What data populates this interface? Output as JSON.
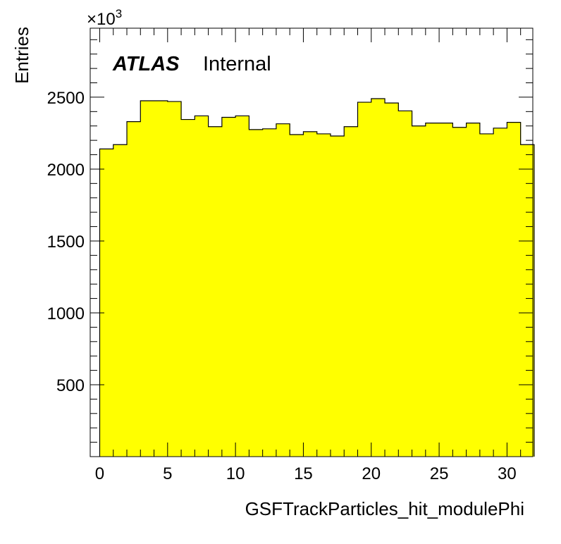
{
  "chart_data": {
    "type": "bar",
    "style": "histogram-step-filled",
    "fill_color": "#ffff00",
    "line_color": "#000000",
    "bin_edges_start": 0,
    "bin_width": 1,
    "values": [
      2140,
      2170,
      2330,
      2475,
      2475,
      2470,
      2345,
      2370,
      2295,
      2360,
      2370,
      2275,
      2280,
      2315,
      2240,
      2260,
      2245,
      2230,
      2295,
      2465,
      2490,
      2460,
      2405,
      2300,
      2320,
      2320,
      2290,
      2320,
      2245,
      2285,
      2325,
      2170
    ],
    "xlabel": "GSFTrackParticles_hit_modulePhi",
    "ylabel": "Entries",
    "y_multiplier": "×10",
    "y_multiplier_exp": "3",
    "xlim": [
      -0.7,
      31.9
    ],
    "ylim": [
      0,
      2980
    ],
    "x_major_ticks": [
      0,
      5,
      10,
      15,
      20,
      25,
      30
    ],
    "x_tick_labels": [
      "0",
      "5",
      "10",
      "15",
      "20",
      "25",
      "30"
    ],
    "x_minor_step": 1,
    "y_major_ticks": [
      500,
      1000,
      1500,
      2000,
      2500
    ],
    "y_tick_labels": [
      "500",
      "1000",
      "1500",
      "2000",
      "2500"
    ],
    "y_minor_step": 100,
    "grid": false,
    "legend": "none",
    "atlas_label": "ATLAS",
    "atlas_status": "Internal"
  }
}
